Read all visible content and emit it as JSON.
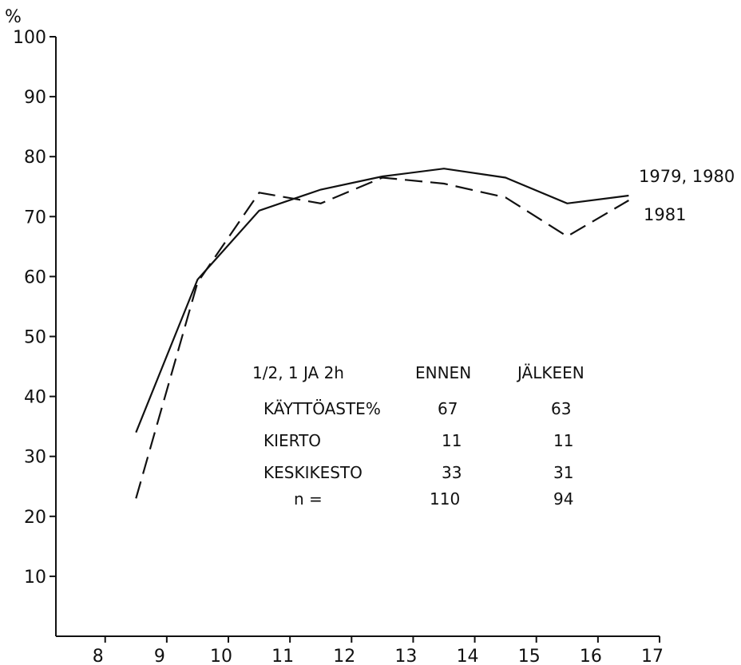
{
  "chart_data": {
    "type": "line",
    "ylabel": "%",
    "xlabel": "",
    "xlim": [
      7.2,
      17
    ],
    "ylim": [
      0,
      100
    ],
    "xticks": [
      8,
      9,
      10,
      11,
      12,
      13,
      14,
      15,
      16,
      17
    ],
    "yticks": [
      10,
      20,
      30,
      40,
      50,
      60,
      70,
      80,
      90,
      100
    ],
    "grid": false,
    "series": [
      {
        "name": "1979, 1980",
        "style": "solid",
        "x": [
          8.5,
          9.5,
          10.5,
          11.5,
          12.5,
          13.5,
          14.5,
          15.5,
          16.5
        ],
        "y": [
          34,
          59.5,
          71,
          74.5,
          76.7,
          78,
          76.5,
          72.2,
          73.5
        ]
      },
      {
        "name": "1981",
        "style": "dashed",
        "x": [
          8.5,
          9.5,
          10.5,
          11.5,
          12.5,
          13.5,
          14.5,
          15.5,
          16.5
        ],
        "y": [
          23,
          59,
          74,
          72.2,
          76.5,
          75.5,
          73.2,
          66.7,
          72.7
        ]
      }
    ],
    "table": {
      "header": [
        "1/2, 1 JA 2h",
        "ENNEN",
        "JÄLKEEN"
      ],
      "rows": [
        [
          "KÄYTTÖASTE%",
          "67",
          "63"
        ],
        [
          "KIERTO",
          "11",
          "11"
        ],
        [
          "KESKIKESTO",
          "33",
          "31"
        ],
        [
          "n =",
          "110",
          "94"
        ]
      ]
    }
  }
}
